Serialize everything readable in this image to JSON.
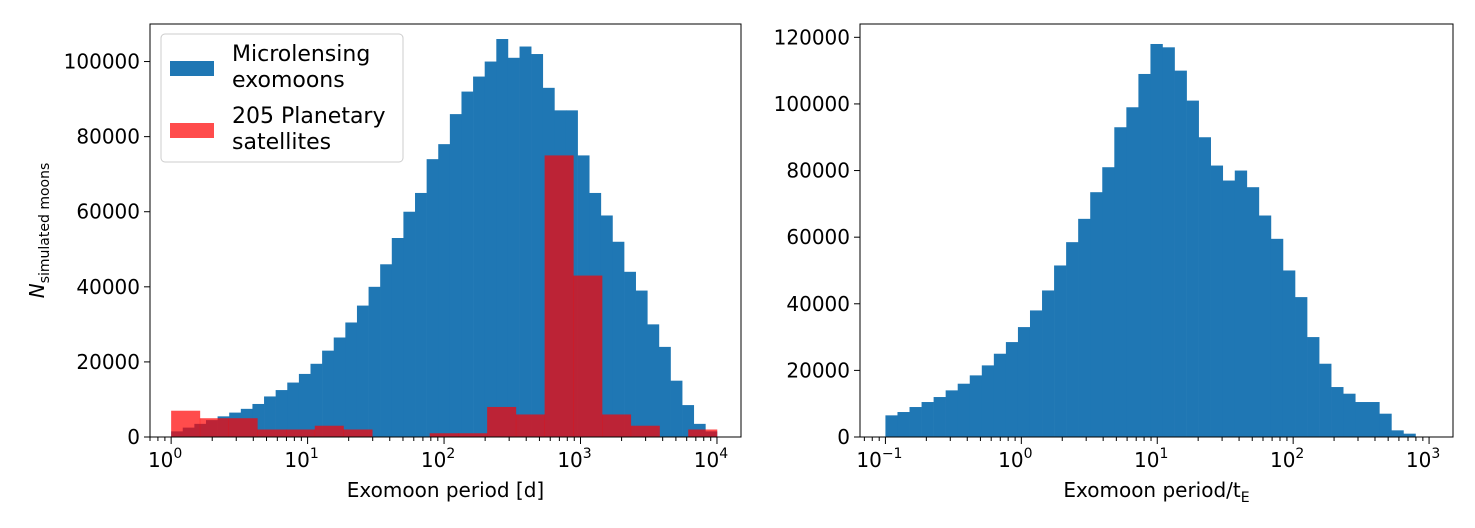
{
  "chart_data": [
    {
      "type": "bar",
      "subtype": "histogram",
      "xscale": "log",
      "xlim": [
        0.7,
        15000
      ],
      "ylim": [
        0,
        110000
      ],
      "xlabel": "Exomoon period [d]",
      "ylabel_main": "N",
      "ylabel_sub": "simulated moons",
      "xticks": [
        1,
        10,
        100,
        1000,
        10000
      ],
      "xtick_exponents": [
        "0",
        "1",
        "2",
        "3",
        "4"
      ],
      "yticks": [
        0,
        20000,
        40000,
        60000,
        80000,
        100000
      ],
      "ytick_labels": [
        "0",
        "20000",
        "40000",
        "60000",
        "80000",
        "100000"
      ],
      "legend_position": "upper-left",
      "grid": false,
      "series": [
        {
          "name": "Microlensing exomoons",
          "legend_lines": [
            "Microlensing",
            "exomoons"
          ],
          "color": "#1f77b4",
          "bin_log_start": 0,
          "bin_log_end": 4,
          "values": [
            1500,
            2500,
            3500,
            4500,
            5500,
            6500,
            7500,
            8800,
            10800,
            12500,
            14500,
            16800,
            19500,
            23000,
            26500,
            30500,
            35000,
            40000,
            46000,
            53000,
            60000,
            65000,
            74000,
            78000,
            86000,
            92000,
            96000,
            100000,
            106000,
            101000,
            104000,
            102000,
            93000,
            87000,
            87000,
            75000,
            65000,
            59000,
            52000,
            44000,
            39000,
            30000,
            24000,
            15000,
            8500,
            3500,
            1500
          ]
        },
        {
          "name": "205 Planetary satellites",
          "legend_lines": [
            "205 Planetary",
            "satellites"
          ],
          "color": "#ff0000",
          "opacity": 0.7,
          "bin_log_start": 0,
          "bin_log_end": 4,
          "values": [
            7000,
            5000,
            5000,
            2000,
            2000,
            3000,
            2000,
            0,
            0,
            1000,
            1000,
            8000,
            6000,
            75000,
            43000,
            6000,
            3000,
            0,
            2000
          ]
        }
      ]
    },
    {
      "type": "bar",
      "subtype": "histogram",
      "xscale": "log",
      "xlim": [
        0.065,
        1500
      ],
      "ylim": [
        0,
        124000
      ],
      "xlabel": "Exomoon period/t",
      "xlabel_sub": "E",
      "xticks": [
        0.1,
        1,
        10,
        100,
        1000
      ],
      "xtick_exponents": [
        "−1",
        "0",
        "1",
        "2",
        "3"
      ],
      "yticks": [
        0,
        20000,
        40000,
        60000,
        80000,
        100000,
        120000
      ],
      "ytick_labels": [
        "0",
        "20000",
        "40000",
        "60000",
        "80000",
        "100000",
        "120000"
      ],
      "grid": false,
      "series": [
        {
          "color": "#1f77b4",
          "bin_log_start": -1,
          "bin_log_end": 2.9,
          "values": [
            6500,
            7500,
            9000,
            10500,
            12000,
            14000,
            16000,
            18500,
            21500,
            25000,
            28500,
            33000,
            38000,
            44000,
            51500,
            58500,
            65500,
            73500,
            81000,
            93000,
            99000,
            109000,
            118000,
            117000,
            110000,
            101000,
            90000,
            81500,
            77000,
            80000,
            75000,
            66500,
            59500,
            50000,
            42000,
            30000,
            22000,
            15000,
            13000,
            10500,
            10500,
            7000,
            2000,
            1000
          ]
        }
      ]
    }
  ]
}
